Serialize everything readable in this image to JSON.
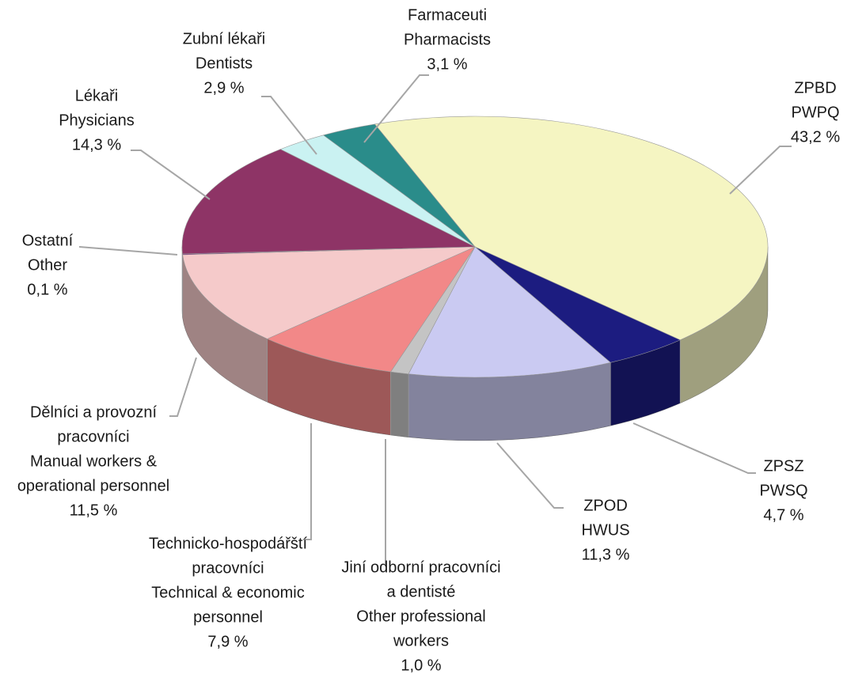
{
  "chart_data": {
    "type": "pie",
    "categories": [
      [
        "ZPBD",
        "PWPQ"
      ],
      [
        "ZPSZ",
        "PWSQ"
      ],
      [
        "ZPOD",
        "HWUS"
      ],
      [
        "Jiní odborní pracovníci",
        "a dentisté",
        "Other professional",
        "workers"
      ],
      [
        "Technicko-hospodářští",
        "pracovníci",
        "Technical & economic",
        "personnel"
      ],
      [
        "Dělníci a provozní",
        "pracovníci",
        "Manual workers &",
        "operational personnel"
      ],
      [
        "Ostatní",
        "Other"
      ],
      [
        "Lékaři",
        "Physicians"
      ],
      [
        "Zubní lékaři",
        "Dentists"
      ],
      [
        "Farmaceuti",
        "Pharmacists"
      ]
    ],
    "values": [
      43.2,
      4.7,
      11.3,
      1.0,
      7.9,
      11.5,
      0.1,
      14.3,
      2.9,
      3.1
    ],
    "value_labels": [
      "43,2 %",
      "4,7 %",
      "11,3 %",
      "1,0 %",
      "7,9 %",
      "11,5 %",
      "0,1 %",
      "14,3 %",
      "2,9 %",
      "3,1 %"
    ],
    "colors": [
      "#f5f5c2",
      "#1c1c80",
      "#cacaf2",
      "#c4c4c4",
      "#f28888",
      "#f5caca",
      "#6e0074",
      "#8e3466",
      "#caf2f2",
      "#2a8c8a"
    ]
  }
}
